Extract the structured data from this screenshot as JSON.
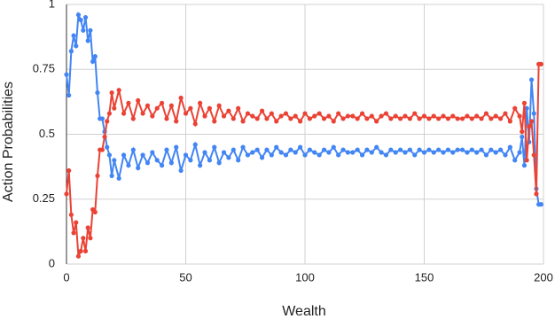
{
  "chart_data": {
    "type": "line",
    "x_label": "Wealth",
    "y_label": "Action Probabilities",
    "x": [
      0,
      1,
      2,
      3,
      4,
      5,
      6,
      7,
      8,
      9,
      10,
      11,
      12,
      13,
      14,
      15,
      16,
      17,
      18,
      19,
      20,
      22,
      24,
      26,
      28,
      30,
      32,
      34,
      36,
      38,
      40,
      42,
      44,
      46,
      48,
      50,
      52,
      54,
      56,
      58,
      60,
      62,
      64,
      66,
      68,
      70,
      72,
      74,
      76,
      78,
      80,
      82,
      84,
      86,
      88,
      90,
      92,
      94,
      96,
      98,
      100,
      102,
      104,
      106,
      108,
      110,
      112,
      114,
      116,
      118,
      120,
      122,
      124,
      126,
      128,
      130,
      132,
      134,
      136,
      138,
      140,
      142,
      144,
      146,
      148,
      150,
      152,
      154,
      156,
      158,
      160,
      162,
      164,
      166,
      168,
      170,
      172,
      174,
      176,
      178,
      180,
      182,
      184,
      186,
      188,
      190,
      191,
      192,
      193,
      194,
      195,
      196,
      197,
      198,
      199
    ],
    "series": [
      {
        "color": "#4285f4",
        "values": [
          0.73,
          0.65,
          0.82,
          0.88,
          0.84,
          0.96,
          0.94,
          0.9,
          0.95,
          0.86,
          0.9,
          0.78,
          0.8,
          0.66,
          0.56,
          0.56,
          0.51,
          0.45,
          0.42,
          0.34,
          0.4,
          0.33,
          0.42,
          0.38,
          0.44,
          0.37,
          0.42,
          0.39,
          0.43,
          0.4,
          0.38,
          0.44,
          0.39,
          0.45,
          0.36,
          0.42,
          0.4,
          0.46,
          0.38,
          0.43,
          0.4,
          0.45,
          0.39,
          0.43,
          0.41,
          0.44,
          0.4,
          0.45,
          0.42,
          0.43,
          0.44,
          0.41,
          0.44,
          0.42,
          0.45,
          0.43,
          0.42,
          0.44,
          0.43,
          0.45,
          0.42,
          0.44,
          0.43,
          0.42,
          0.44,
          0.43,
          0.45,
          0.42,
          0.44,
          0.43,
          0.43,
          0.44,
          0.42,
          0.44,
          0.43,
          0.45,
          0.43,
          0.42,
          0.44,
          0.43,
          0.44,
          0.43,
          0.44,
          0.42,
          0.44,
          0.43,
          0.44,
          0.43,
          0.44,
          0.43,
          0.44,
          0.43,
          0.44,
          0.44,
          0.43,
          0.44,
          0.43,
          0.44,
          0.42,
          0.44,
          0.43,
          0.44,
          0.42,
          0.45,
          0.4,
          0.43,
          0.49,
          0.38,
          0.6,
          0.47,
          0.71,
          0.58,
          0.29,
          0.23,
          0.23
        ]
      },
      {
        "color": "#ea4335",
        "values": [
          0.27,
          0.36,
          0.19,
          0.12,
          0.16,
          0.03,
          0.05,
          0.1,
          0.05,
          0.14,
          0.1,
          0.21,
          0.2,
          0.34,
          0.44,
          0.44,
          0.49,
          0.55,
          0.58,
          0.66,
          0.6,
          0.67,
          0.58,
          0.62,
          0.56,
          0.63,
          0.58,
          0.61,
          0.57,
          0.6,
          0.62,
          0.56,
          0.61,
          0.55,
          0.64,
          0.58,
          0.6,
          0.54,
          0.62,
          0.57,
          0.6,
          0.55,
          0.61,
          0.57,
          0.59,
          0.56,
          0.6,
          0.55,
          0.58,
          0.57,
          0.56,
          0.59,
          0.56,
          0.58,
          0.55,
          0.57,
          0.58,
          0.56,
          0.57,
          0.55,
          0.58,
          0.56,
          0.57,
          0.58,
          0.56,
          0.57,
          0.55,
          0.58,
          0.56,
          0.57,
          0.57,
          0.56,
          0.58,
          0.56,
          0.57,
          0.55,
          0.57,
          0.58,
          0.56,
          0.57,
          0.56,
          0.57,
          0.56,
          0.58,
          0.56,
          0.57,
          0.56,
          0.57,
          0.56,
          0.57,
          0.56,
          0.57,
          0.56,
          0.56,
          0.57,
          0.56,
          0.57,
          0.56,
          0.58,
          0.56,
          0.57,
          0.56,
          0.58,
          0.55,
          0.6,
          0.57,
          0.51,
          0.62,
          0.4,
          0.53,
          0.55,
          0.42,
          0.27,
          0.77,
          0.77
        ]
      }
    ],
    "xlim": [
      0,
      200
    ],
    "xticks": [
      0,
      50,
      100,
      150,
      200
    ],
    "ylim": [
      0,
      1
    ],
    "yticks": [
      0,
      0.25,
      0.5,
      0.75,
      1
    ],
    "grid": true
  }
}
